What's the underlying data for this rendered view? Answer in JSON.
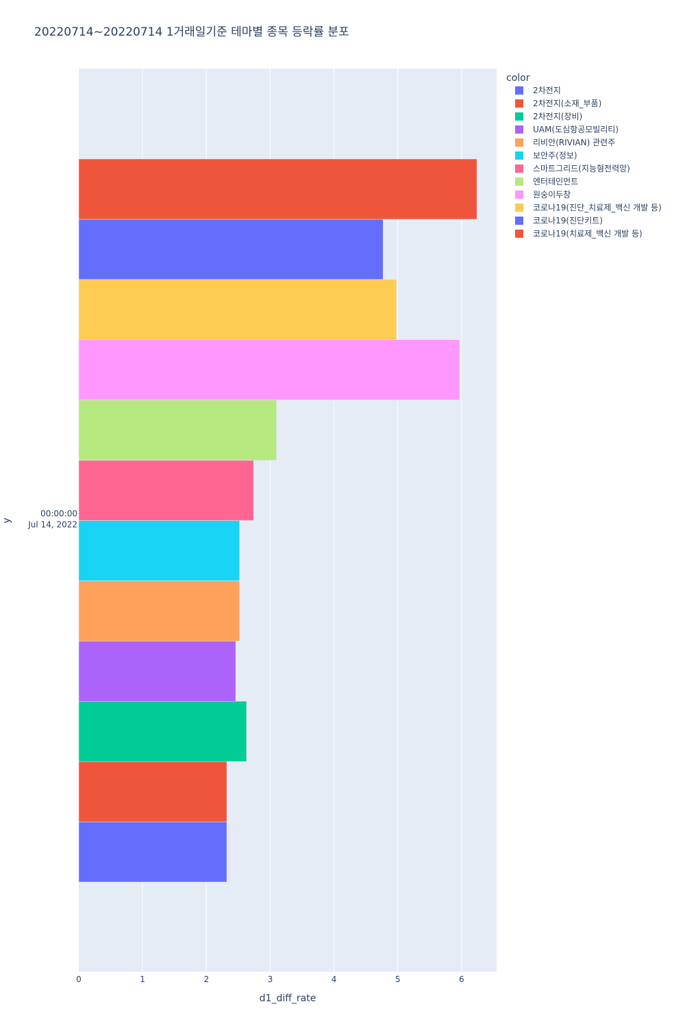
{
  "chart_data": {
    "type": "bar",
    "orientation": "horizontal",
    "title": "20220714~20220714 1거래일기준 테마별 종목 등락률 분포",
    "xlabel": "d1_diff_rate",
    "ylabel": "y",
    "xlim": [
      0,
      6.55
    ],
    "x_ticks": [
      0,
      1,
      2,
      3,
      4,
      5,
      6
    ],
    "y_tick_line1": "00:00:00",
    "y_tick_line2": "Jul 14, 2022",
    "legend_title": "color",
    "legend_position": "right",
    "grid": true,
    "series": [
      {
        "name": "2차전지",
        "value": 2.32,
        "color": "#636efa"
      },
      {
        "name": "2차전지(소재_부품)",
        "value": 2.32,
        "color": "#EF553B"
      },
      {
        "name": "2차전지(장비)",
        "value": 2.63,
        "color": "#00cc96"
      },
      {
        "name": "UAM(도심항공모빌리티)",
        "value": 2.46,
        "color": "#ab63fa"
      },
      {
        "name": "리비안(RIVIAN) 관련주",
        "value": 2.52,
        "color": "#FFA15A"
      },
      {
        "name": "보안주(정보)",
        "value": 2.52,
        "color": "#19d3f3"
      },
      {
        "name": "스마트그리드(지능형전력망)",
        "value": 2.74,
        "color": "#FF6692"
      },
      {
        "name": "엔터테인먼트",
        "value": 3.1,
        "color": "#B6E880"
      },
      {
        "name": "원숭이두창",
        "value": 5.97,
        "color": "#FF97FF"
      },
      {
        "name": "코로나19(진단_치료제_백신 개발 등)",
        "value": 4.98,
        "color": "#FECB52"
      },
      {
        "name": "코로나19(진단키트)",
        "value": 4.77,
        "color": "#636efa"
      },
      {
        "name": "코로나19(치료제_백신 개발 등)",
        "value": 6.24,
        "color": "#EF553B"
      }
    ]
  }
}
